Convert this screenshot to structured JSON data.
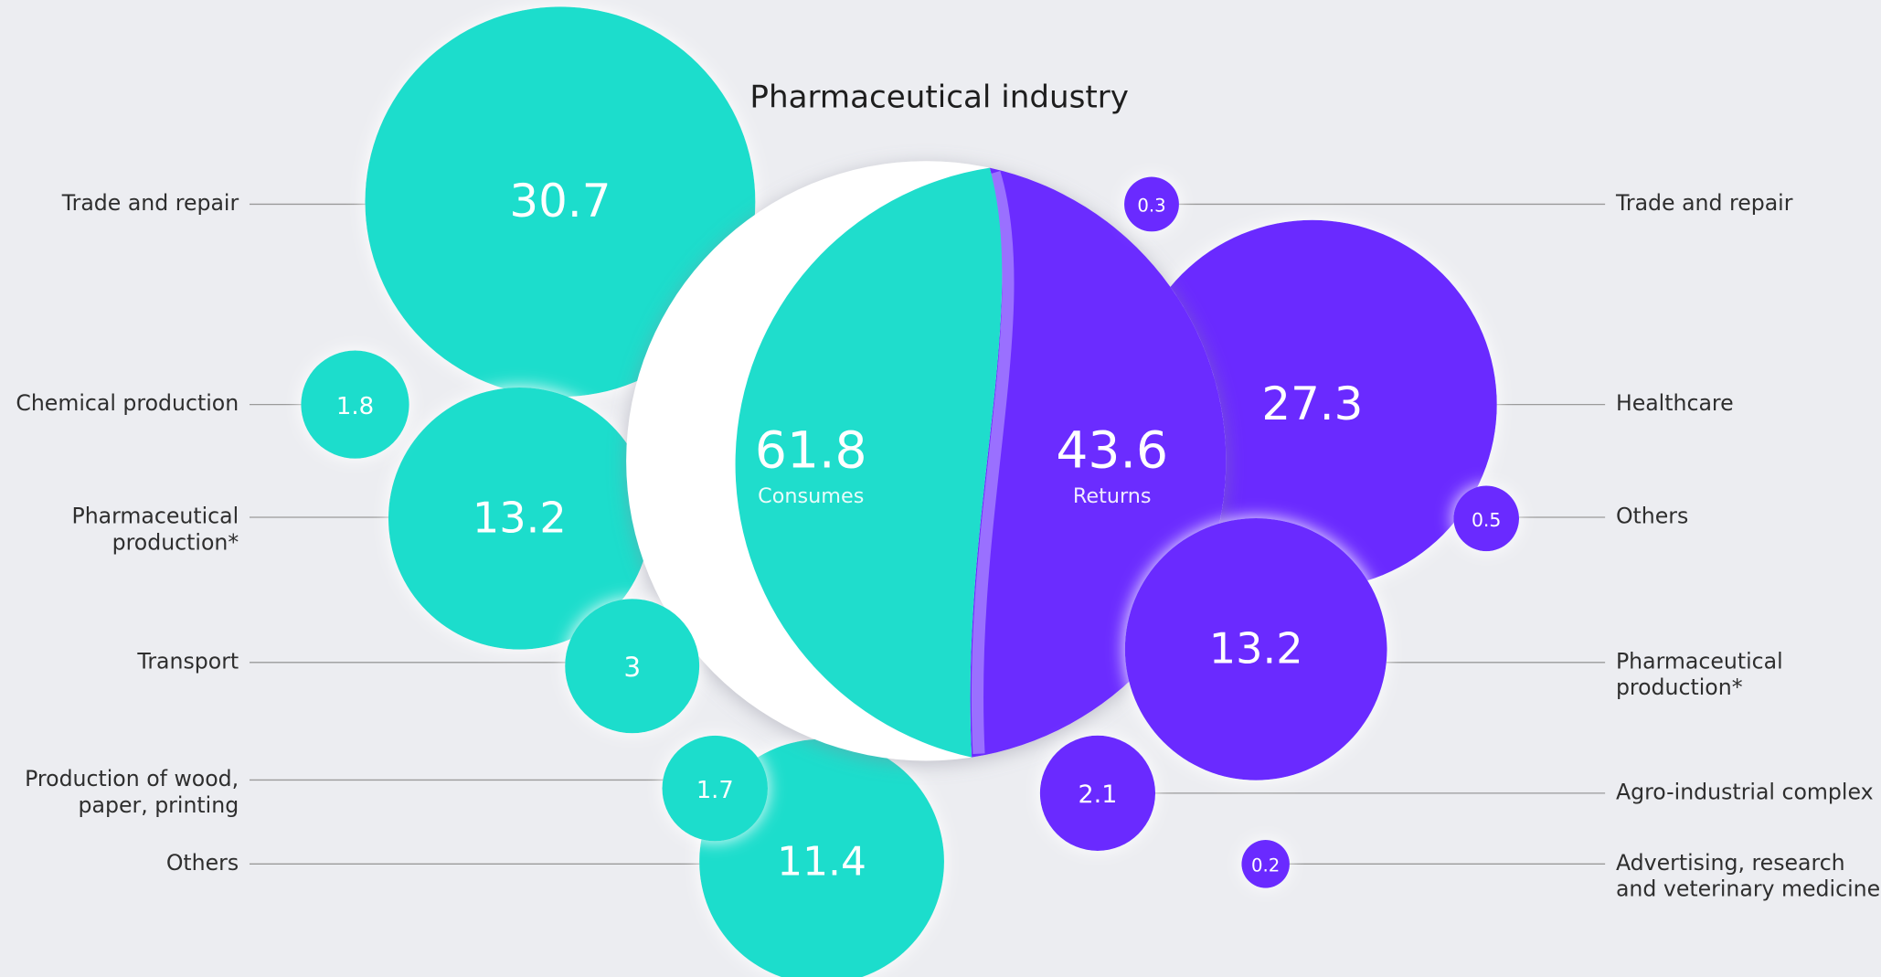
{
  "chart_data": {
    "type": "bubble",
    "title": "Pharmaceutical industry",
    "series": [
      {
        "name": "Consumes",
        "color": "#1fddcc",
        "total": 61.8,
        "categories": [
          [
            "Trade and repair"
          ],
          [
            "Chemical production"
          ],
          [
            "Pharmaceutical",
            "production*"
          ],
          [
            "Transport"
          ],
          [
            "Production of wood,",
            "paper, printing"
          ],
          [
            "Others"
          ]
        ],
        "values": [
          30.7,
          1.8,
          13.2,
          3,
          1.7,
          11.4
        ]
      },
      {
        "name": "Returns",
        "color": "#6b2cff",
        "total": 43.6,
        "categories": [
          [
            "Trade and repair"
          ],
          [
            "Healthcare"
          ],
          [
            "Others"
          ],
          [
            "Pharmaceutical",
            "production*"
          ],
          [
            "Agro-industrial complex"
          ],
          [
            "Advertising, research",
            "and veterinary medicine"
          ]
        ],
        "values": [
          0.3,
          27.3,
          0.5,
          13.2,
          2.1,
          0.2
        ]
      }
    ]
  }
}
